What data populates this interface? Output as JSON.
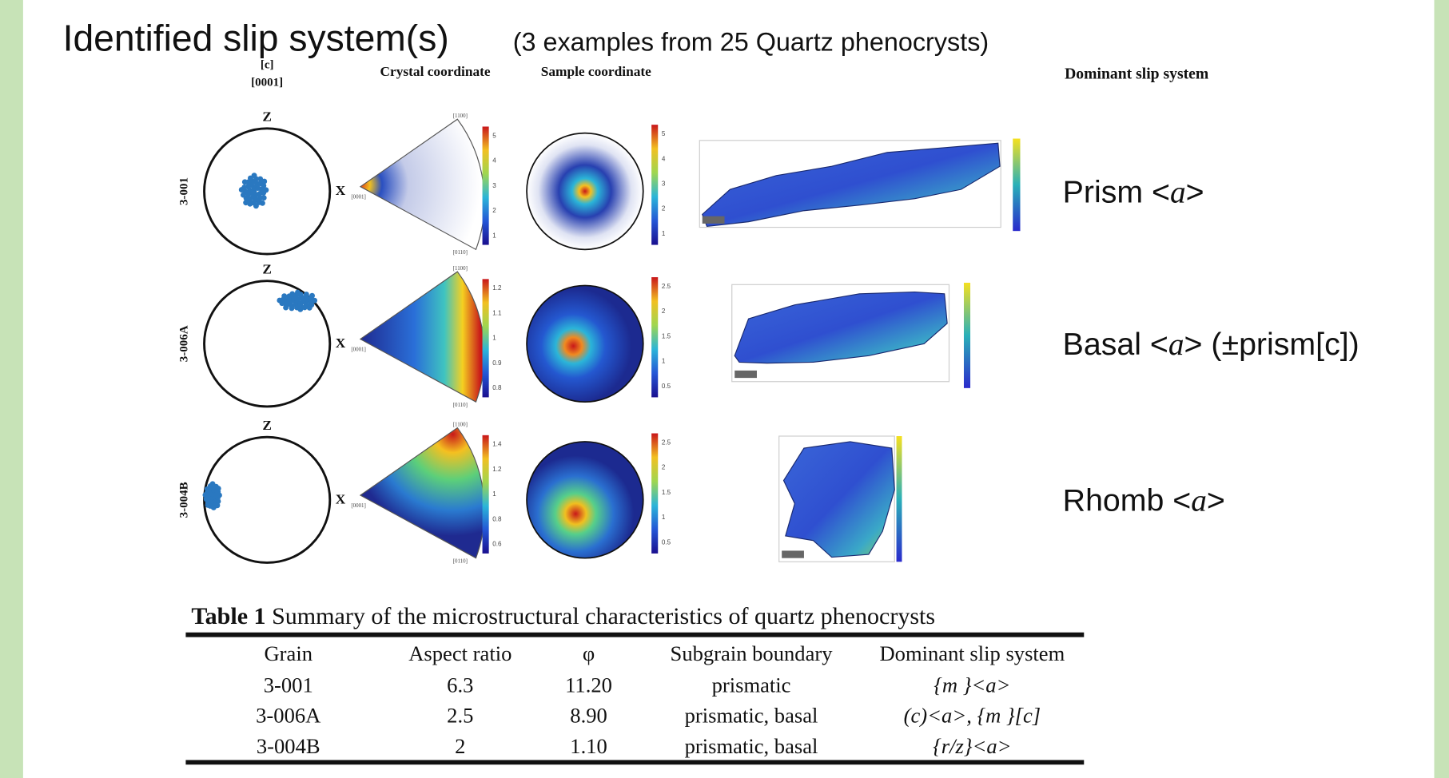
{
  "header": {
    "title": "Identified slip system(s)",
    "subtitle": "(3 examples from 25 Quartz phenocrysts)"
  },
  "columns": {
    "c_axis": [
      "[c]",
      "[0001]"
    ],
    "crystal": "Crystal coordinate",
    "sample": "Sample coordinate",
    "dominant": "Dominant slip system"
  },
  "rows": [
    {
      "label": "3-001",
      "z": "Z",
      "x": "X",
      "wedge_labels": [
        "[1100]",
        "[0001]",
        "[0110]"
      ],
      "crystal_ticks": [
        "5",
        "4",
        "3",
        "2",
        "1"
      ],
      "sample_ticks": [
        "5",
        "4",
        "3",
        "2",
        "1"
      ],
      "slip": [
        "Prism <",
        "a",
        ">"
      ]
    },
    {
      "label": "3-006A",
      "z": "Z",
      "x": "X",
      "wedge_labels": [
        "[1100]",
        "[0001]",
        "[0110]"
      ],
      "crystal_ticks": [
        "1.2",
        "1.1",
        "1",
        "0.9",
        "0.8"
      ],
      "sample_ticks": [
        "2.5",
        "2",
        "1.5",
        "1",
        "0.5"
      ],
      "slip": [
        "Basal <",
        "a",
        "> (±prism[c])"
      ]
    },
    {
      "label": "3-004B",
      "z": "Z",
      "x": "X",
      "wedge_labels": [
        "[1100]",
        "[0001]",
        "[0110]"
      ],
      "crystal_ticks": [
        "1.4",
        "1.2",
        "1",
        "0.8",
        "0.6"
      ],
      "sample_ticks": [
        "2.5",
        "2",
        "1.5",
        "1",
        "0.5"
      ],
      "slip": [
        "Rhomb <",
        "a",
        ">"
      ]
    }
  ],
  "table": {
    "caption_label": "Table 1",
    "caption": "Summary of the microstructural characteristics of quartz phenocrysts",
    "headers": [
      "Grain",
      "Aspect ratio",
      "φ",
      "Subgrain boundary",
      "Dominant slip system"
    ],
    "rows": [
      [
        "3-001",
        "6.3",
        "11.20",
        "prismatic",
        "{m }<a>"
      ],
      [
        "3-006A",
        "2.5",
        "8.90",
        "prismatic, basal",
        "(c)<a>, {m }[c]"
      ],
      [
        "3-004B",
        "2",
        "1.10",
        "prismatic, basal",
        "{r/z}<a>"
      ]
    ]
  }
}
